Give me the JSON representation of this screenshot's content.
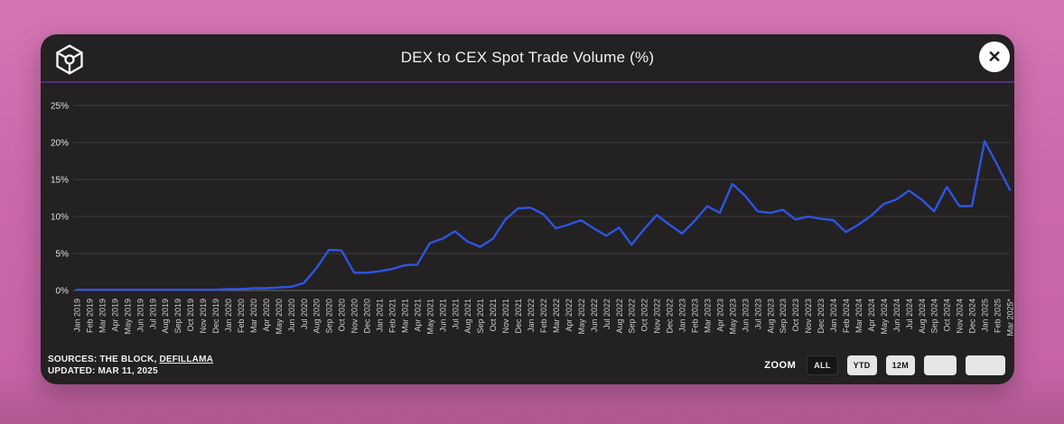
{
  "window": {
    "title": "DEX to CEX Spot Trade Volume (%)",
    "close_label": "✕"
  },
  "footer": {
    "sources_prefix": "SOURCES: THE BLOCK, ",
    "sources_link": "DEFILLAMA",
    "updated": "UPDATED: MAR 11, 2025",
    "zoom_label": "ZOOM",
    "zoom_buttons": [
      {
        "label": "ALL",
        "active": true
      },
      {
        "label": "YTD",
        "active": false
      },
      {
        "label": "12M",
        "active": false
      },
      {
        "label": "",
        "active": false
      },
      {
        "label": "",
        "active": false
      }
    ]
  },
  "colors": {
    "background_pink": "#cb6aab",
    "card_background": "#232122",
    "accent_purple": "#532f78",
    "line_blue": "#2e55e2",
    "grid_gray": "#3c3a3c",
    "axis_gray": "#6b696b",
    "text_light": "#e8e8e8"
  },
  "chart_data": {
    "type": "line",
    "title": "DEX to CEX Spot Trade Volume (%)",
    "legend": [],
    "grid": "horizontal",
    "ylim": [
      0,
      25
    ],
    "yticks": [
      0,
      5,
      10,
      15,
      20,
      25
    ],
    "ytick_labels": [
      "0%",
      "5%",
      "10%",
      "15%",
      "20%",
      "25%"
    ],
    "line_color": "#2e55e2",
    "x": [
      "Jan 2019",
      "Feb 2019",
      "Mar 2019",
      "Apr 2019",
      "May 2019",
      "Jun 2019",
      "Jul 2019",
      "Aug 2019",
      "Sep 2019",
      "Oct 2019",
      "Nov 2019",
      "Dec 2019",
      "Jan 2020",
      "Feb 2020",
      "Mar 2020",
      "Apr 2020",
      "May 2020",
      "Jun 2020",
      "Jul 2020",
      "Aug 2020",
      "Sep 2020",
      "Oct 2020",
      "Nov 2020",
      "Dec 2020",
      "Jan 2021",
      "Feb 2021",
      "Mar 2021",
      "Apr 2021",
      "May 2021",
      "Jun 2021",
      "Jul 2021",
      "Aug 2021",
      "Sep 2021",
      "Oct 2021",
      "Nov 2021",
      "Dec 2021",
      "Jan 2022",
      "Feb 2022",
      "Mar 2022",
      "Apr 2022",
      "May 2022",
      "Jun 2022",
      "Jul 2022",
      "Aug 2022",
      "Sep 2022",
      "Oct 2022",
      "Nov 2022",
      "Dec 2022",
      "Jan 2023",
      "Feb 2023",
      "Mar 2023",
      "Apr 2023",
      "May 2023",
      "Jun 2023",
      "Jul 2023",
      "Aug 2023",
      "Sep 2023",
      "Oct 2023",
      "Nov 2023",
      "Dec 2023",
      "Jan 2024",
      "Feb 2024",
      "Mar 2024",
      "Apr 2024",
      "May 2024",
      "Jun 2024",
      "Jul 2024",
      "Aug 2024",
      "Sep 2024",
      "Oct 2024",
      "Nov 2024",
      "Dec 2024",
      "Jan 2025",
      "Feb 2025",
      "Mar 2025*"
    ],
    "values": [
      0.1,
      0.1,
      0.1,
      0.1,
      0.1,
      0.1,
      0.1,
      0.1,
      0.1,
      0.1,
      0.1,
      0.1,
      0.2,
      0.2,
      0.3,
      0.3,
      0.4,
      0.5,
      1.0,
      3.0,
      5.5,
      5.4,
      2.4,
      2.4,
      2.6,
      2.9,
      3.4,
      3.5,
      6.4,
      7.0,
      8.0,
      6.6,
      5.9,
      7.0,
      9.6,
      11.1,
      11.2,
      10.3,
      8.4,
      8.9,
      9.5,
      8.4,
      7.4,
      8.5,
      6.2,
      8.3,
      10.2,
      8.9,
      7.7,
      9.4,
      11.4,
      10.5,
      14.4,
      12.8,
      10.7,
      10.5,
      10.9,
      9.6,
      10.0,
      9.7,
      9.5,
      7.9,
      8.9,
      10.1,
      11.7,
      12.3,
      13.5,
      12.3,
      10.7,
      14.0,
      11.4,
      11.4,
      20.2,
      17.0,
      13.6
    ]
  }
}
